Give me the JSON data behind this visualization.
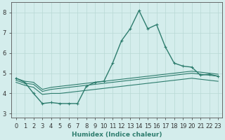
{
  "title": "",
  "xlabel": "Humidex (Indice chaleur)",
  "background_color": "#d4edec",
  "grid_color": "#b8d8d4",
  "line_color": "#2e7d6e",
  "xlim": [
    -0.5,
    23.5
  ],
  "ylim": [
    2.8,
    8.5
  ],
  "x_ticks": [
    0,
    1,
    2,
    3,
    4,
    5,
    6,
    7,
    8,
    9,
    10,
    11,
    12,
    13,
    14,
    15,
    16,
    17,
    18,
    19,
    20,
    21,
    22,
    23
  ],
  "y_ticks": [
    3,
    4,
    5,
    6,
    7,
    8
  ],
  "series": [
    {
      "x": [
        0,
        1,
        2,
        3,
        4,
        5,
        6,
        7,
        8,
        9,
        10,
        11,
        12,
        13,
        14,
        15,
        16,
        17,
        18,
        19,
        20,
        21,
        22,
        23
      ],
      "y": [
        4.75,
        4.55,
        4.0,
        3.5,
        3.55,
        3.5,
        3.5,
        3.5,
        4.35,
        4.55,
        4.6,
        5.5,
        6.6,
        7.2,
        8.1,
        7.2,
        7.4,
        6.3,
        5.5,
        5.35,
        5.3,
        4.9,
        4.95,
        4.85
      ],
      "marker": true,
      "lw": 1.0
    },
    {
      "x": [
        0,
        1,
        2,
        3,
        4,
        5,
        6,
        7,
        8,
        9,
        10,
        11,
        12,
        13,
        14,
        15,
        16,
        17,
        18,
        19,
        20,
        21,
        22,
        23
      ],
      "y": [
        4.75,
        4.6,
        4.55,
        4.2,
        4.3,
        4.35,
        4.4,
        4.45,
        4.5,
        4.55,
        4.6,
        4.65,
        4.7,
        4.75,
        4.8,
        4.85,
        4.9,
        4.95,
        5.0,
        5.05,
        5.1,
        5.05,
        5.0,
        4.95
      ],
      "marker": false,
      "lw": 0.8
    },
    {
      "x": [
        0,
        1,
        2,
        3,
        4,
        5,
        6,
        7,
        8,
        9,
        10,
        11,
        12,
        13,
        14,
        15,
        16,
        17,
        18,
        19,
        20,
        21,
        22,
        23
      ],
      "y": [
        4.65,
        4.5,
        4.45,
        4.1,
        4.2,
        4.25,
        4.3,
        4.35,
        4.4,
        4.45,
        4.5,
        4.55,
        4.6,
        4.65,
        4.7,
        4.75,
        4.8,
        4.85,
        4.9,
        4.95,
        5.0,
        4.95,
        4.9,
        4.85
      ],
      "marker": false,
      "lw": 0.8
    },
    {
      "x": [
        0,
        1,
        2,
        3,
        4,
        5,
        6,
        7,
        8,
        9,
        10,
        11,
        12,
        13,
        14,
        15,
        16,
        17,
        18,
        19,
        20,
        21,
        22,
        23
      ],
      "y": [
        4.55,
        4.4,
        4.3,
        3.95,
        4.0,
        4.0,
        4.05,
        4.1,
        4.15,
        4.2,
        4.25,
        4.3,
        4.35,
        4.4,
        4.45,
        4.5,
        4.55,
        4.6,
        4.65,
        4.7,
        4.75,
        4.7,
        4.65,
        4.6
      ],
      "marker": false,
      "lw": 0.8
    }
  ]
}
